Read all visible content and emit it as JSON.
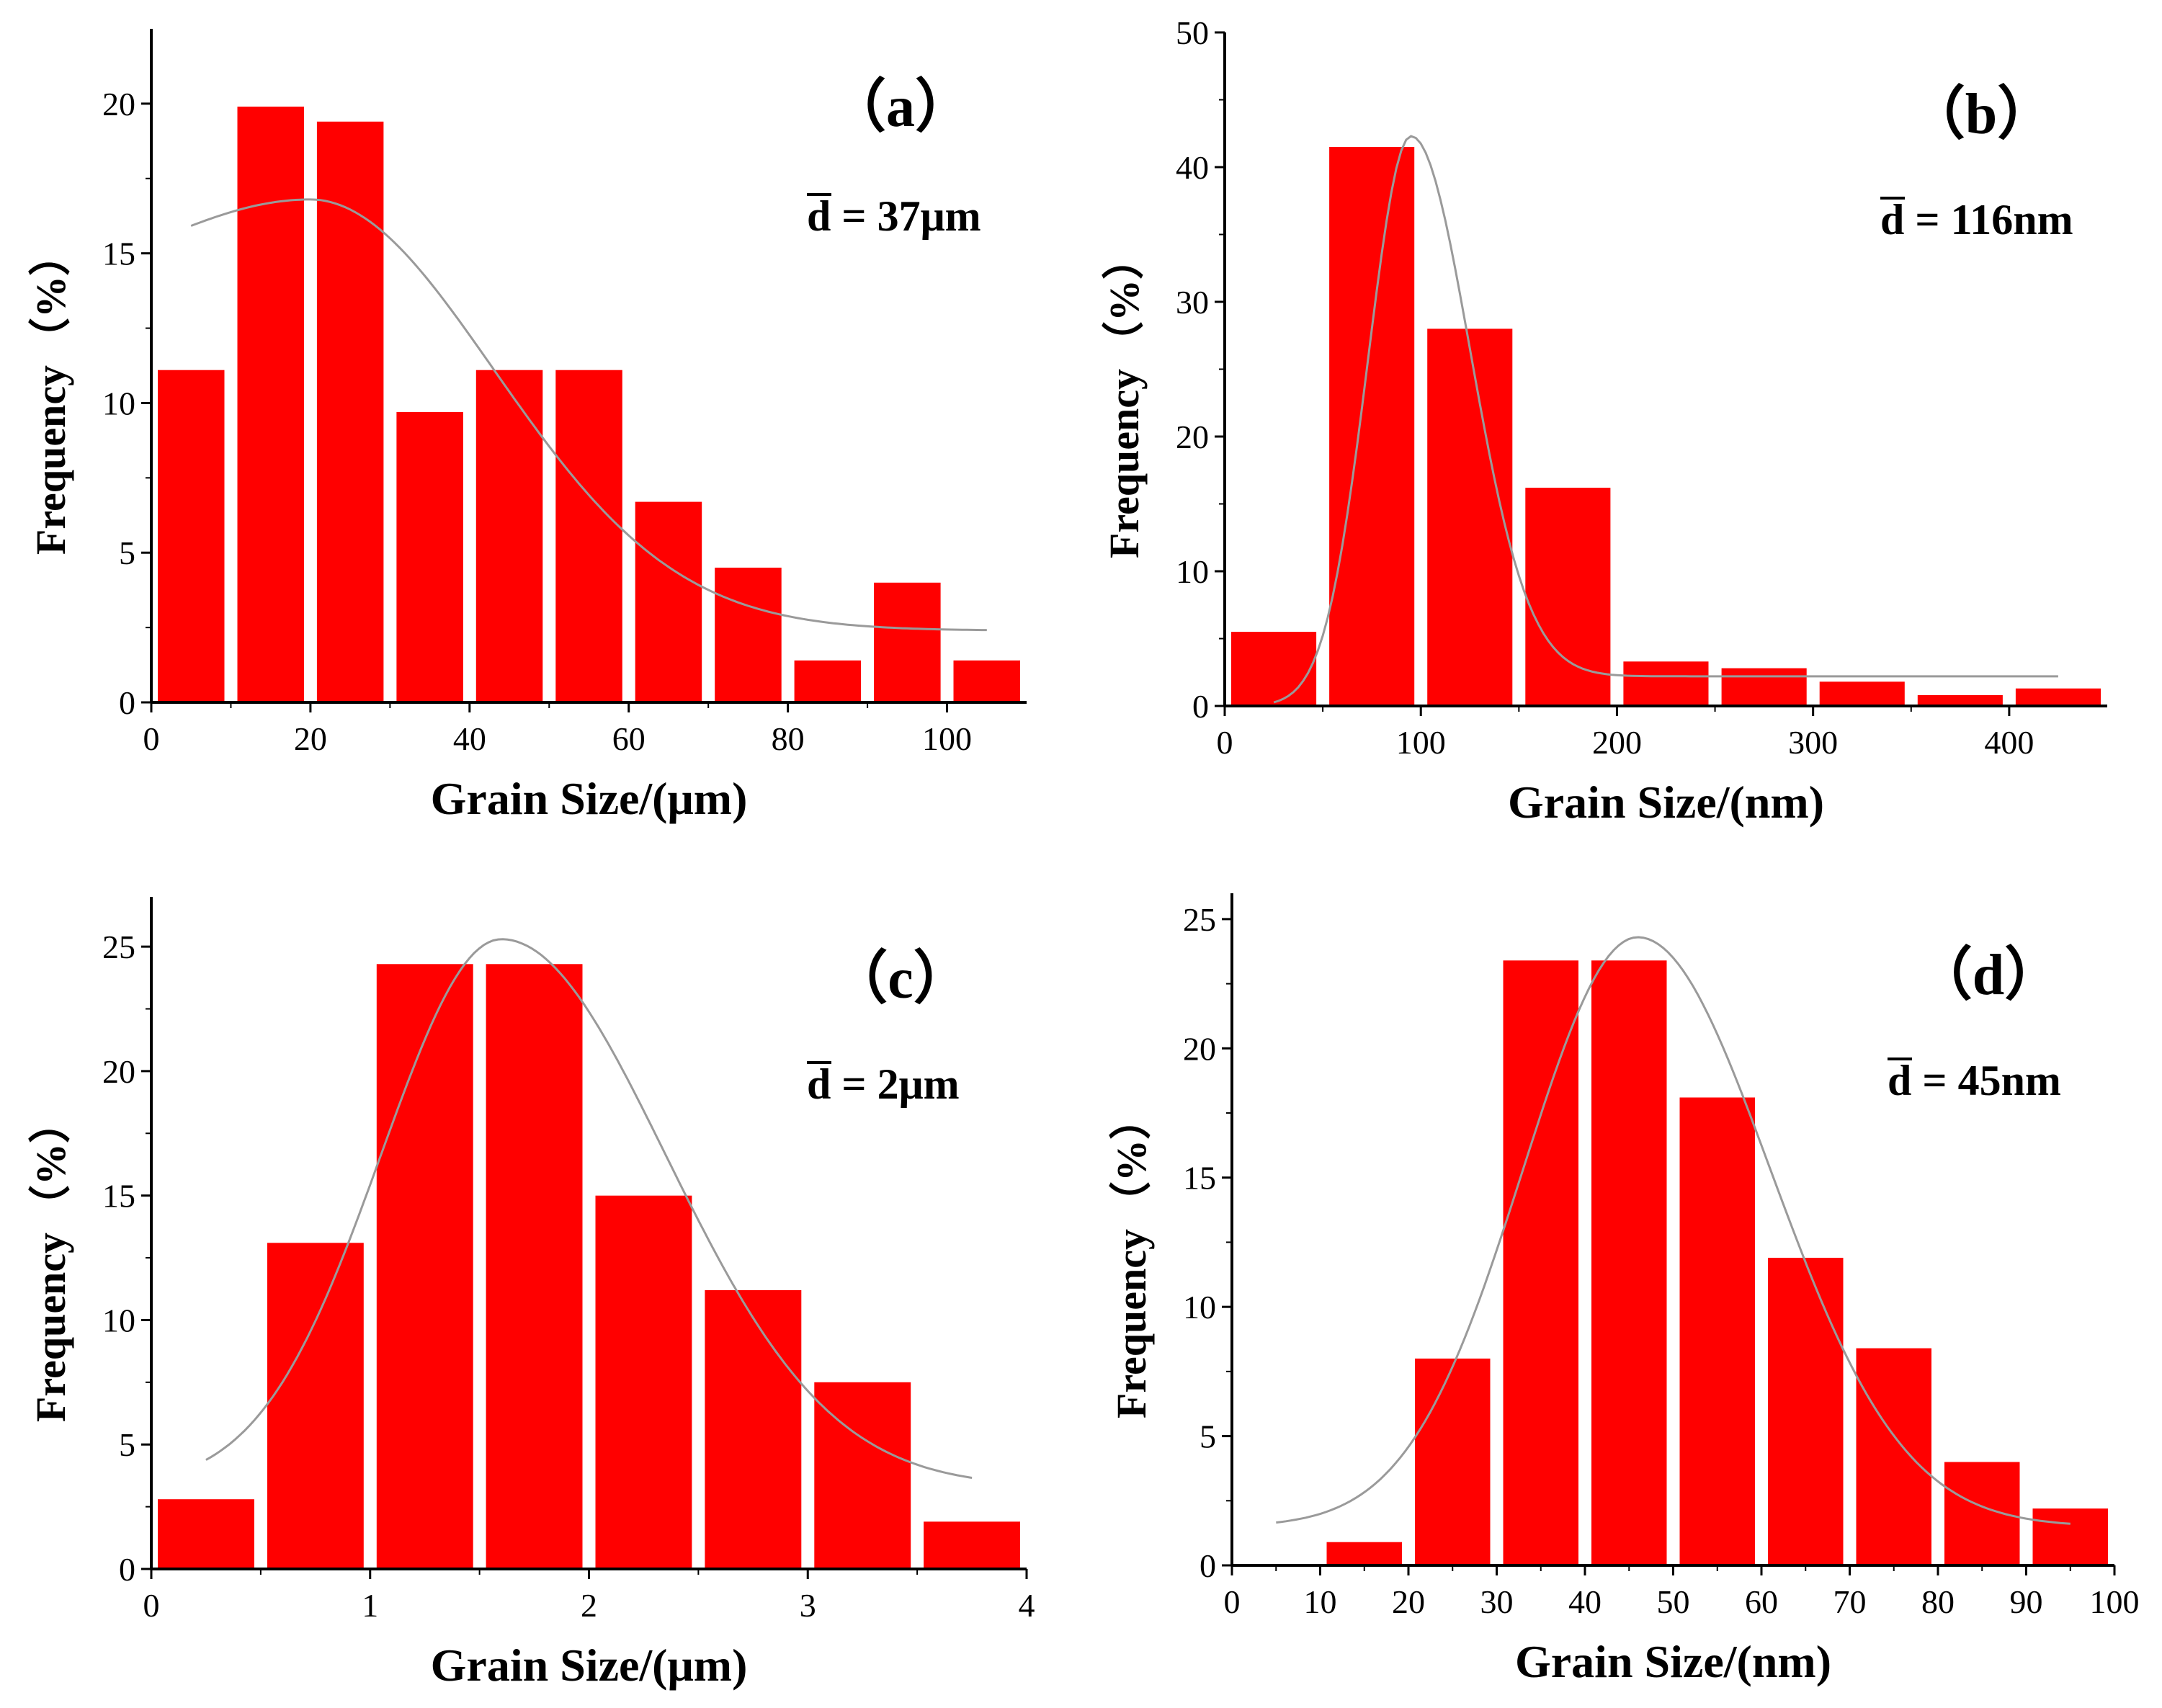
{
  "figure": {
    "bar_color": "#ff0000",
    "fit_color": "#9a9a9a",
    "axis_color": "#000000"
  },
  "chart_data": [
    {
      "type": "bar",
      "panel": "(a)",
      "panel_text": "（a）",
      "mean_symbol": "d",
      "mean_text": " = 37μm",
      "xlabel": "Grain Size/(μm)",
      "ylabel": "Frequency",
      "ylabel_unit": "（%）",
      "xlim": [
        0,
        110
      ],
      "ylim": [
        0,
        22.5
      ],
      "xticks": [
        0,
        20,
        40,
        60,
        80,
        100
      ],
      "yticks": [
        0,
        5,
        10,
        15,
        20
      ],
      "bins": [
        [
          0,
          10,
          11.1
        ],
        [
          10,
          20,
          19.9
        ],
        [
          20,
          30,
          19.4
        ],
        [
          30,
          40,
          9.7
        ],
        [
          40,
          50,
          11.1
        ],
        [
          50,
          60,
          11.1
        ],
        [
          60,
          70,
          6.7
        ],
        [
          70,
          80,
          4.5
        ],
        [
          80,
          90,
          1.4
        ],
        [
          90,
          100,
          4.0
        ],
        [
          100,
          110,
          1.4
        ]
      ],
      "fit": {
        "x0": 5,
        "x1": 105,
        "peak_x": 20,
        "peak_y": 16.8,
        "sigma_left": 20,
        "sigma_right": 23,
        "baseline_left": 13.2,
        "baseline_right": 2.4
      }
    },
    {
      "type": "bar",
      "panel": "(b)",
      "panel_text": "（b）",
      "mean_symbol": "d",
      "mean_text": " = 116nm",
      "xlabel": "Grain Size/(nm)",
      "ylabel": "Frequency",
      "ylabel_unit": "（%）",
      "xlim": [
        0,
        450
      ],
      "ylim": [
        0,
        50
      ],
      "xticks": [
        0,
        100,
        200,
        300,
        400
      ],
      "yticks": [
        0,
        10,
        20,
        30,
        40,
        50
      ],
      "bins": [
        [
          0,
          50,
          5.5
        ],
        [
          50,
          100,
          41.5
        ],
        [
          100,
          150,
          28.0
        ],
        [
          150,
          200,
          16.2
        ],
        [
          200,
          250,
          3.3
        ],
        [
          250,
          300,
          2.8
        ],
        [
          300,
          350,
          1.8
        ],
        [
          350,
          400,
          0.8
        ],
        [
          400,
          450,
          1.3
        ]
      ],
      "fit": {
        "x0": 25,
        "x1": 425,
        "peak_x": 95,
        "peak_y": 42.3,
        "sigma_left": 22,
        "sigma_right": 30,
        "baseline_left": 0,
        "baseline_right": 2.2
      }
    },
    {
      "type": "bar",
      "panel": "(c)",
      "panel_text": "（c）",
      "mean_symbol": "d",
      "mean_text": " = 2μm",
      "xlabel": "Grain Size/(μm)",
      "ylabel": "Frequency",
      "ylabel_unit": "（%）",
      "xlim": [
        0,
        4
      ],
      "ylim": [
        0,
        27
      ],
      "xticks": [
        0,
        1,
        2,
        3,
        4
      ],
      "yticks": [
        0,
        5,
        10,
        15,
        20,
        25
      ],
      "bins": [
        [
          0,
          0.5,
          2.8
        ],
        [
          0.5,
          1.0,
          13.1
        ],
        [
          1.0,
          1.5,
          24.3
        ],
        [
          1.5,
          2.0,
          24.3
        ],
        [
          2.0,
          2.5,
          15.0
        ],
        [
          2.5,
          3.0,
          11.2
        ],
        [
          3.0,
          3.5,
          7.5
        ],
        [
          3.5,
          4.0,
          1.9
        ]
      ],
      "fit": {
        "x0": 0.25,
        "x1": 3.75,
        "peak_x": 1.6,
        "peak_y": 25.3,
        "sigma_left": 0.55,
        "sigma_right": 0.75,
        "baseline_left": 3.3,
        "baseline_right": 3.3
      }
    },
    {
      "type": "bar",
      "panel": "(d)",
      "panel_text": "（d）",
      "mean_symbol": "d",
      "mean_text": " = 45nm",
      "xlabel": "Grain Size/(nm)",
      "ylabel": "Frequency",
      "ylabel_unit": "（%）",
      "xlim": [
        0,
        100
      ],
      "ylim": [
        0,
        26
      ],
      "xticks": [
        0,
        10,
        20,
        30,
        40,
        50,
        60,
        70,
        80,
        90,
        100
      ],
      "yticks": [
        0,
        5,
        10,
        15,
        20,
        25
      ],
      "bins": [
        [
          10,
          20,
          0.9
        ],
        [
          20,
          30,
          8.0
        ],
        [
          30,
          40,
          23.4
        ],
        [
          40,
          50,
          23.4
        ],
        [
          50,
          60,
          18.1
        ],
        [
          60,
          70,
          11.9
        ],
        [
          70,
          80,
          8.4
        ],
        [
          80,
          90,
          4.0
        ],
        [
          90,
          100,
          2.2
        ]
      ],
      "fit": {
        "x0": 5,
        "x1": 95,
        "peak_x": 46,
        "peak_y": 24.3,
        "sigma_left": 13,
        "sigma_right": 15,
        "baseline_left": 1.5,
        "baseline_right": 1.5
      }
    }
  ]
}
